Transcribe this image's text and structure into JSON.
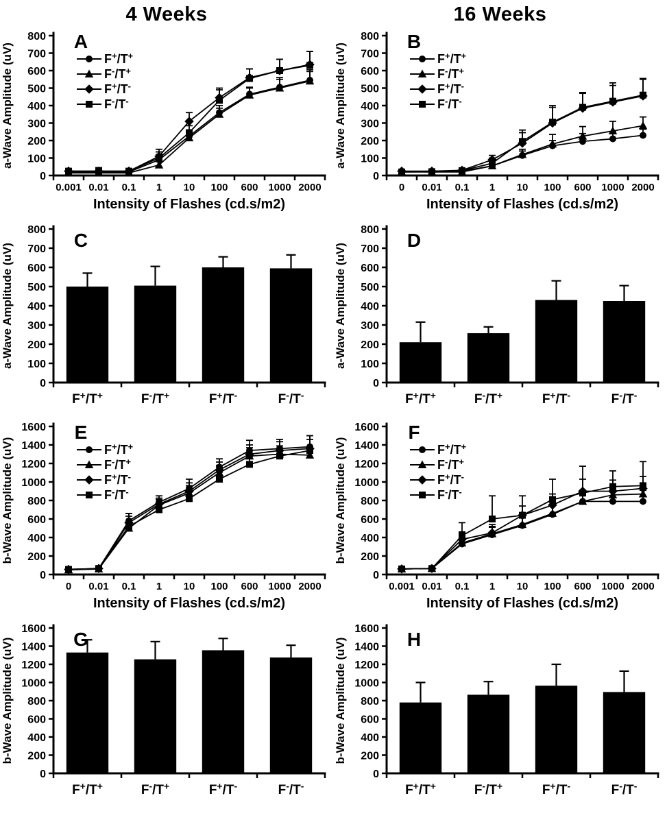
{
  "header": {
    "left_title": "4 Weeks",
    "right_title": "16 Weeks"
  },
  "colors": {
    "ink": "#000000",
    "background": "#ffffff"
  },
  "legend_labels": [
    "F⁺/T⁺",
    "F⁻/T⁺",
    "F⁺/T⁻",
    "F⁻/T⁻"
  ],
  "chart_data": [
    {
      "panel": "A",
      "type": "line",
      "week_group": "4 Weeks",
      "ylabel": "a-Wave Amplitude (uV)",
      "xlabel": "Intensity of Flashes (cd.s/m2)",
      "categories": [
        "0.001",
        "0.01",
        "0.1",
        "1",
        "10",
        "100",
        "600",
        "1000",
        "2000"
      ],
      "ylim": [
        0,
        800
      ],
      "ytick_step": 100,
      "grid": false,
      "legend_position": "upper-left",
      "series": [
        {
          "name": "F⁺/T⁺",
          "marker": "circle",
          "values": [
            20,
            20,
            20,
            90,
            225,
            360,
            465,
            505,
            545
          ],
          "errors": [
            12,
            15,
            12,
            30,
            30,
            40,
            40,
            55,
            60
          ]
        },
        {
          "name": "F⁻/T⁺",
          "marker": "triangle",
          "values": [
            15,
            15,
            15,
            60,
            215,
            350,
            460,
            500,
            540
          ],
          "errors": [
            10,
            12,
            10,
            20,
            25,
            35,
            40,
            50,
            55
          ]
        },
        {
          "name": "F⁺/T⁻",
          "marker": "diamond",
          "values": [
            25,
            25,
            25,
            110,
            310,
            445,
            560,
            600,
            635
          ],
          "errors": [
            12,
            15,
            12,
            40,
            50,
            55,
            50,
            65,
            75
          ]
        },
        {
          "name": "F⁻/T⁻",
          "marker": "square",
          "values": [
            25,
            25,
            25,
            100,
            245,
            430,
            555,
            600,
            630
          ],
          "errors": [
            12,
            20,
            12,
            35,
            40,
            60,
            55,
            65,
            80
          ]
        }
      ]
    },
    {
      "panel": "B",
      "type": "line",
      "week_group": "16 Weeks",
      "ylabel": "a-Wave Amplitude (uV)",
      "xlabel": "Intensity of Flashes (cd.s/m2)",
      "categories": [
        "0",
        "0.01",
        "0.1",
        "1",
        "10",
        "100",
        "600",
        "1000",
        "2000"
      ],
      "ylim": [
        0,
        800
      ],
      "ytick_step": 100,
      "grid": false,
      "legend_position": "upper-left",
      "series": [
        {
          "name": "F⁺/T⁺",
          "marker": "circle",
          "values": [
            25,
            20,
            25,
            55,
            115,
            170,
            195,
            210,
            230
          ],
          "errors": [
            10,
            10,
            10,
            20,
            25,
            30,
            45,
            40,
            35
          ]
        },
        {
          "name": "F⁻/T⁺",
          "marker": "triangle",
          "values": [
            20,
            20,
            20,
            55,
            120,
            180,
            225,
            255,
            285
          ],
          "errors": [
            10,
            10,
            10,
            20,
            30,
            55,
            55,
            55,
            50
          ]
        },
        {
          "name": "F⁺/T⁻",
          "marker": "diamond",
          "values": [
            25,
            25,
            30,
            90,
            185,
            300,
            385,
            420,
            455
          ],
          "errors": [
            10,
            10,
            12,
            25,
            60,
            90,
            85,
            95,
            95
          ]
        },
        {
          "name": "F⁻/T⁻",
          "marker": "square",
          "values": [
            20,
            22,
            28,
            70,
            195,
            305,
            390,
            425,
            460
          ],
          "errors": [
            10,
            10,
            12,
            30,
            65,
            95,
            85,
            105,
            95
          ]
        }
      ]
    },
    {
      "panel": "C",
      "type": "bar",
      "week_group": "4 Weeks",
      "ylabel": "a-Wave Amplitude (uV)",
      "xlabel": "",
      "categories": [
        "F⁺/T⁺",
        "F⁻/T⁺",
        "F⁺/T⁻",
        "F⁻/T⁻"
      ],
      "ylim": [
        0,
        800
      ],
      "ytick_step": 100,
      "grid": false,
      "values": [
        500,
        505,
        600,
        595
      ],
      "errors": [
        70,
        100,
        55,
        70
      ]
    },
    {
      "panel": "D",
      "type": "bar",
      "week_group": "16 Weeks",
      "ylabel": "a-Wave Amplitude (uV)",
      "xlabel": "",
      "categories": [
        "F⁺/T⁺",
        "F⁻/T⁺",
        "F⁺/T⁻",
        "F⁻/T⁻"
      ],
      "ylim": [
        0,
        800
      ],
      "ytick_step": 100,
      "grid": false,
      "values": [
        210,
        257,
        430,
        425
      ],
      "errors": [
        105,
        33,
        100,
        80
      ]
    },
    {
      "panel": "E",
      "type": "line",
      "week_group": "4 Weeks",
      "ylabel": "b-Wave Amplitude (uV)",
      "xlabel": "Intensity of Flashes (cd.s/m2)",
      "categories": [
        "0",
        "0.01",
        "0.1",
        "1",
        "10",
        "100",
        "600",
        "1000",
        "2000"
      ],
      "ylim": [
        0,
        1600
      ],
      "ytick_step": 200,
      "grid": false,
      "legend_position": "upper-left",
      "series": [
        {
          "name": "F⁺/T⁺",
          "marker": "circle",
          "values": [
            55,
            65,
            580,
            780,
            930,
            1160,
            1340,
            1360,
            1380
          ],
          "errors": [
            12,
            12,
            80,
            70,
            100,
            90,
            110,
            100,
            120
          ]
        },
        {
          "name": "F⁻/T⁺",
          "marker": "triangle",
          "values": [
            50,
            60,
            500,
            750,
            880,
            1100,
            1280,
            1300,
            1290
          ],
          "errors": [
            10,
            10,
            60,
            60,
            80,
            80,
            90,
            90,
            80
          ]
        },
        {
          "name": "F⁺/T⁻",
          "marker": "diamond",
          "values": [
            55,
            65,
            560,
            760,
            900,
            1130,
            1300,
            1340,
            1360
          ],
          "errors": [
            10,
            10,
            70,
            65,
            90,
            85,
            100,
            95,
            100
          ]
        },
        {
          "name": "F⁻/T⁻",
          "marker": "square",
          "values": [
            55,
            65,
            520,
            700,
            820,
            1030,
            1190,
            1280,
            1340
          ],
          "errors": [
            10,
            10,
            140,
            55,
            70,
            75,
            85,
            85,
            160
          ]
        }
      ]
    },
    {
      "panel": "F",
      "type": "line",
      "week_group": "16 Weeks",
      "ylabel": "b-Wave Amplitude (uV)",
      "xlabel": "Intensity of Flashes (cd.s/m2)",
      "categories": [
        "0.001",
        "0.01",
        "0.1",
        "1",
        "10",
        "100",
        "600",
        "1000",
        "2000"
      ],
      "ylim": [
        0,
        1600
      ],
      "ytick_step": 200,
      "grid": false,
      "legend_position": "upper-left",
      "series": [
        {
          "name": "F⁺/T⁺",
          "marker": "circle",
          "values": [
            60,
            65,
            330,
            430,
            530,
            650,
            790,
            790,
            790
          ],
          "errors": [
            15,
            10,
            60,
            80,
            90,
            100,
            120,
            120,
            120
          ]
        },
        {
          "name": "F⁻/T⁺",
          "marker": "triangle",
          "values": [
            60,
            65,
            340,
            440,
            540,
            660,
            790,
            860,
            870
          ],
          "errors": [
            15,
            10,
            60,
            80,
            90,
            100,
            120,
            110,
            110
          ]
        },
        {
          "name": "F⁺/T⁻",
          "marker": "diamond",
          "values": [
            60,
            65,
            380,
            450,
            640,
            750,
            900,
            900,
            930
          ],
          "errors": [
            15,
            10,
            80,
            90,
            100,
            120,
            130,
            120,
            130
          ]
        },
        {
          "name": "F⁻/T⁻",
          "marker": "square",
          "values": [
            60,
            65,
            420,
            600,
            640,
            810,
            880,
            950,
            960
          ],
          "errors": [
            15,
            10,
            140,
            250,
            210,
            220,
            290,
            170,
            260
          ]
        }
      ]
    },
    {
      "panel": "G",
      "type": "bar",
      "week_group": "4 Weeks",
      "ylabel": "b-Wave Amplitude (uV)",
      "xlabel": "",
      "categories": [
        "F⁺/T⁺",
        "F⁻/T⁺",
        "F⁺/T⁻",
        "F⁻/T⁻"
      ],
      "ylim": [
        0,
        1600
      ],
      "ytick_step": 200,
      "grid": false,
      "values": [
        1330,
        1255,
        1355,
        1275
      ],
      "errors": [
        140,
        195,
        130,
        135
      ]
    },
    {
      "panel": "H",
      "type": "bar",
      "week_group": "16 Weeks",
      "ylabel": "b-Wave Amplitude (uV)",
      "xlabel": "",
      "categories": [
        "F⁺/T⁺",
        "F⁻/T⁺",
        "F⁺/T⁻",
        "F⁻/T⁻"
      ],
      "ylim": [
        0,
        1600
      ],
      "ytick_step": 200,
      "grid": false,
      "values": [
        780,
        865,
        965,
        895
      ],
      "errors": [
        220,
        145,
        235,
        230
      ]
    }
  ]
}
